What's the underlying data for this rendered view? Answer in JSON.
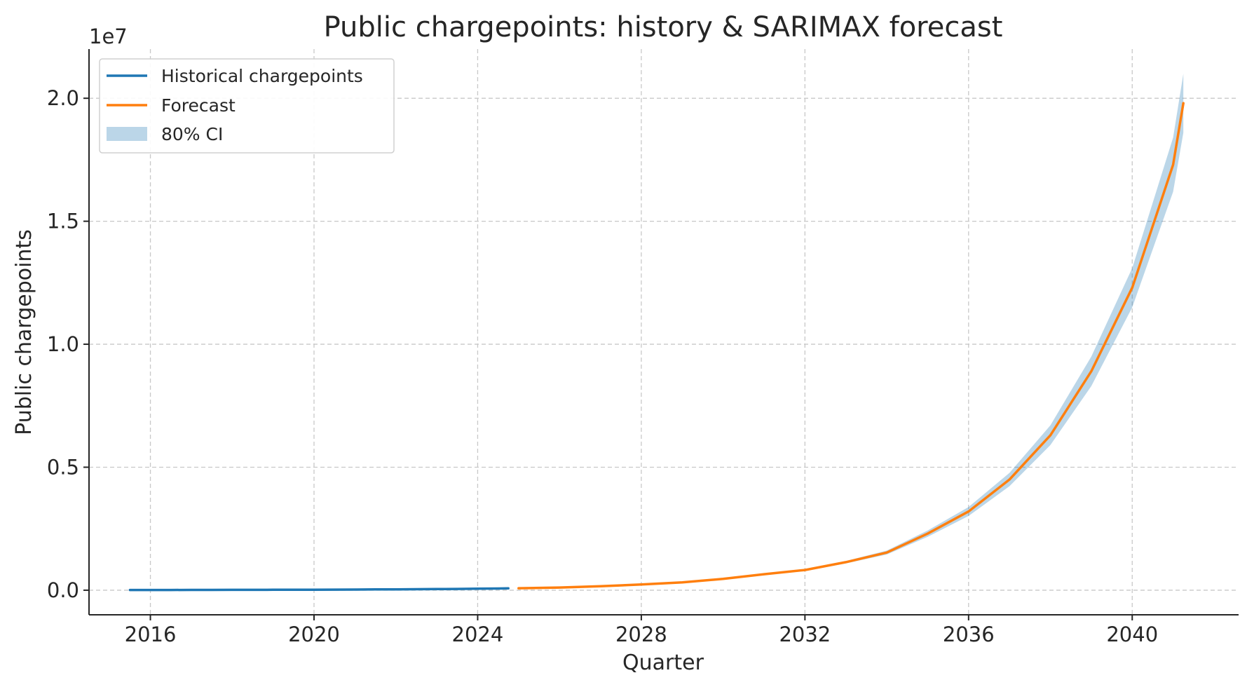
{
  "chart_data": {
    "type": "line",
    "title": "Public chargepoints: history & SARIMAX forecast",
    "xlabel": "Quarter",
    "ylabel": "Public chargepoints",
    "offset_label": "1e7",
    "xlim": [
      2014.5,
      2042.6
    ],
    "ylim": [
      -1000000,
      22000000
    ],
    "x_ticks": [
      2016,
      2020,
      2024,
      2028,
      2032,
      2036,
      2040
    ],
    "x_tick_labels": [
      "2016",
      "2020",
      "2024",
      "2028",
      "2032",
      "2036",
      "2040"
    ],
    "y_ticks": [
      0,
      5000000,
      10000000,
      15000000,
      20000000
    ],
    "y_tick_labels": [
      "0.0",
      "0.5",
      "1.0",
      "1.5",
      "2.0"
    ],
    "grid": true,
    "legend": {
      "position": "top-left",
      "entries": [
        {
          "label": "Historical chargepoints",
          "kind": "line",
          "color": "#1f77b4"
        },
        {
          "label": "Forecast",
          "kind": "line",
          "color": "#ff7f0e"
        },
        {
          "label": "80% CI",
          "kind": "band",
          "color": "#1f77b4"
        }
      ]
    },
    "series": [
      {
        "name": "Historical chargepoints",
        "color": "#1f77b4",
        "x": [
          2015.5,
          2016.0,
          2016.5,
          2017.0,
          2017.5,
          2018.0,
          2018.5,
          2019.0,
          2019.5,
          2020.0,
          2020.5,
          2021.0,
          2021.5,
          2022.0,
          2022.5,
          2023.0,
          2023.5,
          2024.0,
          2024.5,
          2024.75
        ],
        "y": [
          8000,
          9000,
          10000,
          11000,
          12000,
          14000,
          15000,
          17000,
          19000,
          21000,
          24000,
          27000,
          31000,
          35000,
          40000,
          46000,
          53000,
          61000,
          70000,
          76000
        ]
      },
      {
        "name": "Forecast",
        "color": "#ff7f0e",
        "x": [
          2025.0,
          2026.0,
          2027.0,
          2028.0,
          2029.0,
          2030.0,
          2031.0,
          2032.0,
          2033.0,
          2034.0,
          2035.0,
          2036.0,
          2037.0,
          2038.0,
          2039.0,
          2040.0,
          2041.0,
          2041.25
        ],
        "y": [
          80000,
          110000,
          160000,
          230000,
          320000,
          460000,
          650000,
          820000,
          1140000,
          1530000,
          2300000,
          3200000,
          4500000,
          6300000,
          8900000,
          12300000,
          17300000,
          19800000
        ]
      }
    ],
    "ci_band": {
      "label": "80% CI",
      "color": "#1f77b4",
      "x": [
        2025.0,
        2026.0,
        2027.0,
        2028.0,
        2029.0,
        2030.0,
        2031.0,
        2032.0,
        2033.0,
        2034.0,
        2035.0,
        2036.0,
        2037.0,
        2038.0,
        2039.0,
        2040.0,
        2041.0,
        2041.25
      ],
      "lower": [
        75000,
        100000,
        145000,
        210000,
        300000,
        430000,
        610000,
        780000,
        1090000,
        1450000,
        2170000,
        3020000,
        4230000,
        5900000,
        8300000,
        11500000,
        16200000,
        18600000
      ],
      "upper": [
        85000,
        120000,
        175000,
        250000,
        340000,
        490000,
        690000,
        860000,
        1190000,
        1610000,
        2430000,
        3380000,
        4770000,
        6700000,
        9500000,
        13100000,
        18400000,
        21000000
      ]
    }
  }
}
